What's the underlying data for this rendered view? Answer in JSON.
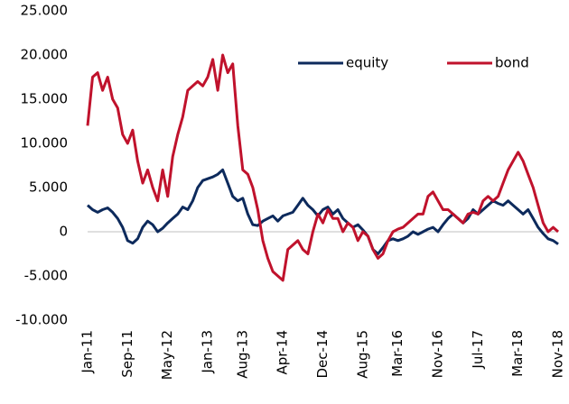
{
  "chart_data": {
    "type": "line",
    "categories": [
      "Jan-11",
      null,
      null,
      null,
      null,
      null,
      null,
      null,
      "Sep-11",
      null,
      null,
      null,
      null,
      null,
      null,
      null,
      "May-12",
      null,
      null,
      null,
      null,
      null,
      null,
      null,
      "Jan-13",
      null,
      null,
      null,
      null,
      null,
      null,
      "Aug-13",
      null,
      null,
      null,
      null,
      null,
      null,
      null,
      "Apr-14",
      null,
      null,
      null,
      null,
      null,
      null,
      null,
      "Dec-14",
      null,
      null,
      null,
      null,
      null,
      null,
      null,
      "Aug-15",
      null,
      null,
      null,
      null,
      null,
      null,
      "Mar-16",
      null,
      null,
      null,
      null,
      null,
      null,
      null,
      "Nov-16",
      null,
      null,
      null,
      null,
      null,
      null,
      null,
      "Jul-17",
      null,
      null,
      null,
      null,
      null,
      null,
      null,
      "Mar-18",
      null,
      null,
      null,
      null,
      null,
      null,
      null,
      "Nov-18"
    ],
    "series": [
      {
        "name": "equity",
        "color": "#0d2a5c",
        "values": [
          3000,
          2500,
          2200,
          2500,
          2700,
          2200,
          1500,
          500,
          -1000,
          -1300,
          -800,
          500,
          1200,
          800,
          0,
          400,
          1000,
          1500,
          2000,
          2800,
          2500,
          3500,
          5000,
          5800,
          6000,
          6200,
          6500,
          7000,
          5500,
          4000,
          3500,
          3800,
          2000,
          800,
          700,
          1200,
          1500,
          1800,
          1200,
          1800,
          2000,
          2200,
          3000,
          3800,
          3000,
          2500,
          1800,
          2500,
          2800,
          2000,
          2500,
          1500,
          1000,
          500,
          800,
          200,
          -500,
          -2000,
          -2500,
          -1800,
          -1000,
          -800,
          -1000,
          -800,
          -500,
          0,
          -300,
          0,
          300,
          500,
          0,
          800,
          1500,
          2000,
          1500,
          1000,
          1500,
          2500,
          2000,
          2500,
          3000,
          3500,
          3200,
          3000,
          3500,
          3000,
          2500,
          2000,
          2500,
          1500,
          500,
          -200,
          -800,
          -1000,
          -1400
        ]
      },
      {
        "name": "bond",
        "color": "#c0122c",
        "values": [
          12000,
          17500,
          18000,
          16000,
          17500,
          15000,
          14000,
          11000,
          10000,
          11500,
          8000,
          5500,
          7000,
          5000,
          3500,
          7000,
          4000,
          8500,
          11000,
          13000,
          16000,
          16500,
          17000,
          16500,
          17500,
          19500,
          16000,
          20000,
          18000,
          19000,
          12000,
          7000,
          6500,
          5000,
          2500,
          -1000,
          -3000,
          -4500,
          -5000,
          -5500,
          -2000,
          -1500,
          -1000,
          -2000,
          -2500,
          0,
          2000,
          1000,
          2500,
          1500,
          1500,
          0,
          1000,
          500,
          -1000,
          0,
          -500,
          -2000,
          -3000,
          -2500,
          -1000,
          0,
          300,
          500,
          1000,
          1500,
          2000,
          2000,
          4000,
          4500,
          3500,
          2500,
          2500,
          2000,
          1500,
          1000,
          2000,
          2200,
          2000,
          3500,
          4000,
          3500,
          4000,
          5500,
          7000,
          8000,
          9000,
          8000,
          6500,
          5000,
          3000,
          1000,
          0,
          500,
          0
        ]
      }
    ],
    "ylim": [
      -10000,
      25000
    ],
    "yticks": [
      {
        "value": -10000,
        "label": "-10.000"
      },
      {
        "value": -5000,
        "label": "-5.000"
      },
      0,
      {
        "value": 5000,
        "label": "5.000"
      },
      {
        "value": 10000,
        "label": "10.000"
      },
      {
        "value": 15000,
        "label": "15.000"
      },
      {
        "value": 20000,
        "label": "20.000"
      },
      {
        "value": 25000,
        "label": "25.000"
      }
    ],
    "grid": false,
    "legend": "upper right"
  }
}
